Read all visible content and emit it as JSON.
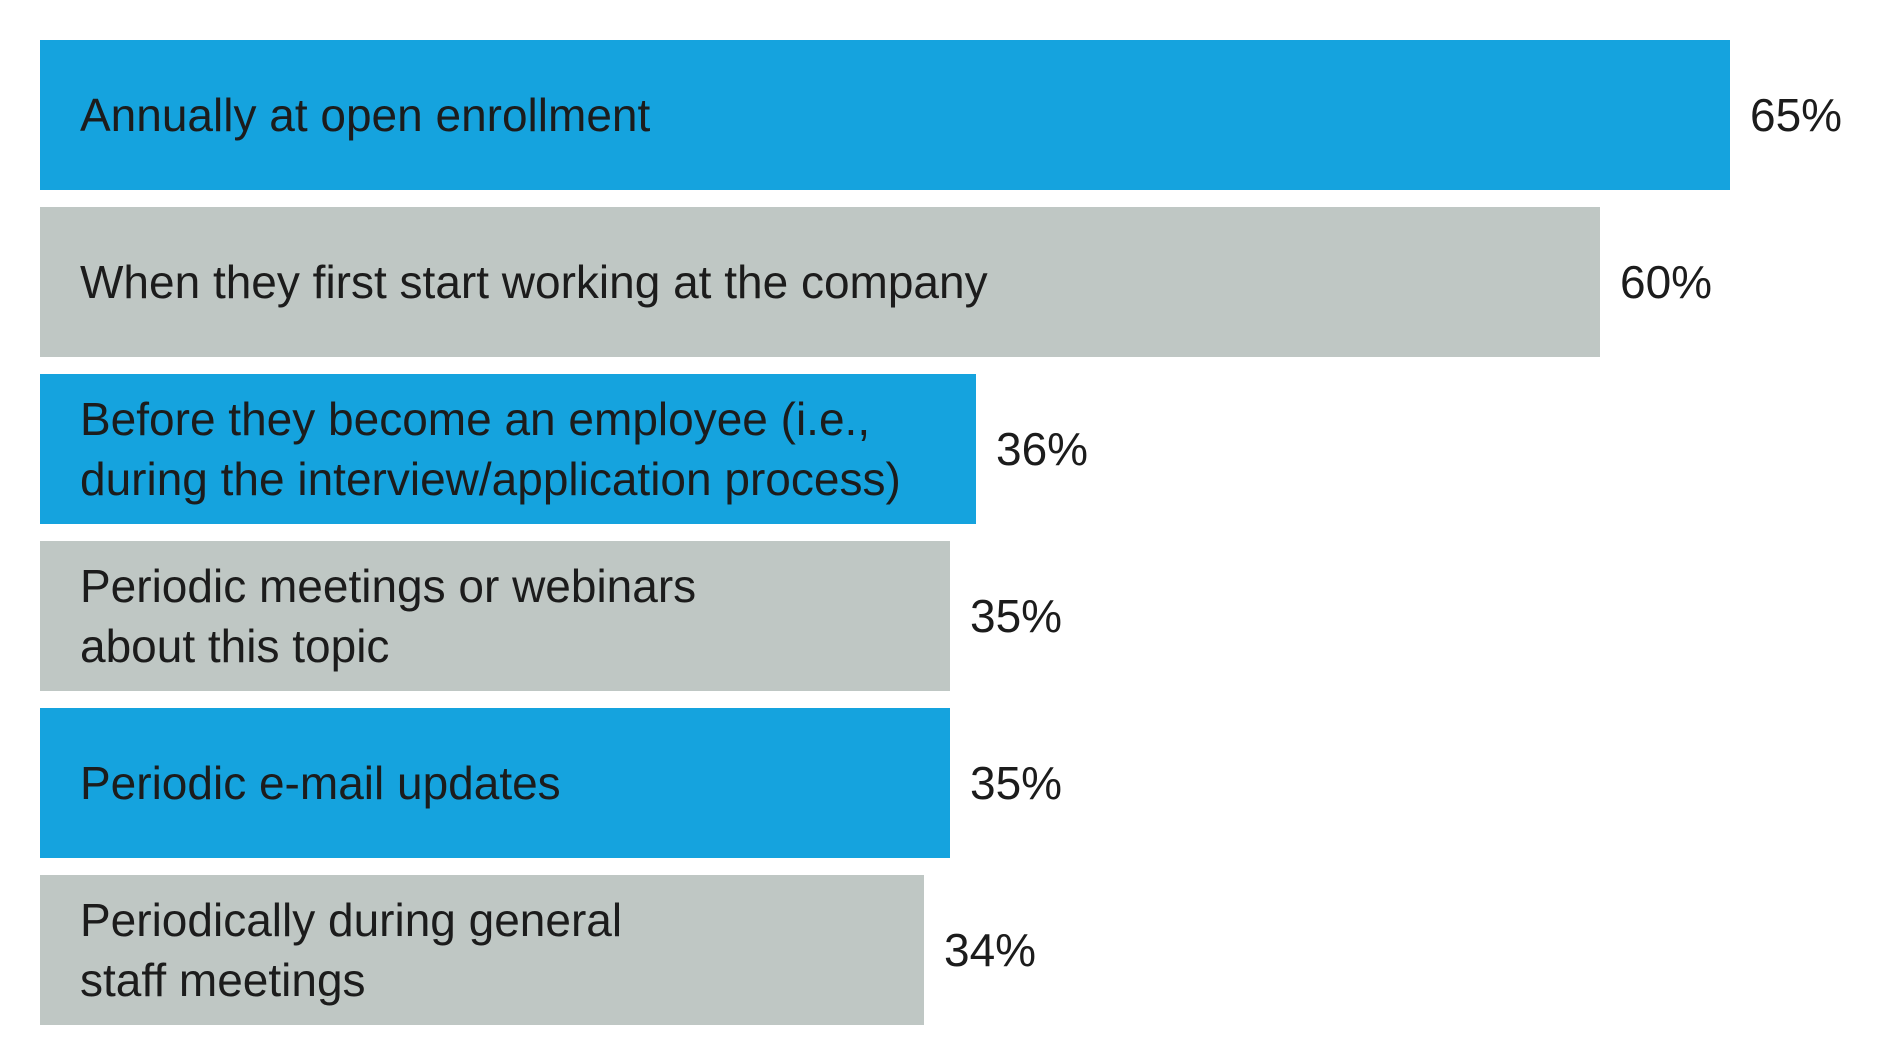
{
  "chart_data": {
    "type": "bar",
    "orientation": "horizontal",
    "title": "",
    "xlabel": "",
    "ylabel": "",
    "xlim": [
      0,
      65
    ],
    "grid": false,
    "legend": "none",
    "categories": [
      [
        "Annually at open enrollment"
      ],
      [
        "When they first start working at the company"
      ],
      [
        "Before they become an employee (i.e.,",
        "during the interview/application process)"
      ],
      [
        "Periodic meetings or webinars",
        "about this topic"
      ],
      [
        "Periodic e-mail updates"
      ],
      [
        "Periodically during general",
        "staff meetings"
      ]
    ],
    "values": [
      65,
      60,
      36,
      35,
      35,
      34
    ],
    "value_labels": [
      "65%",
      "60%",
      "36%",
      "35%",
      "35%",
      "34%"
    ],
    "bar_colors": [
      "#15A3DE",
      "#BFC7C4",
      "#15A3DE",
      "#BFC7C4",
      "#15A3DE",
      "#BFC7C4"
    ],
    "label_color": "#1c1c1c"
  }
}
